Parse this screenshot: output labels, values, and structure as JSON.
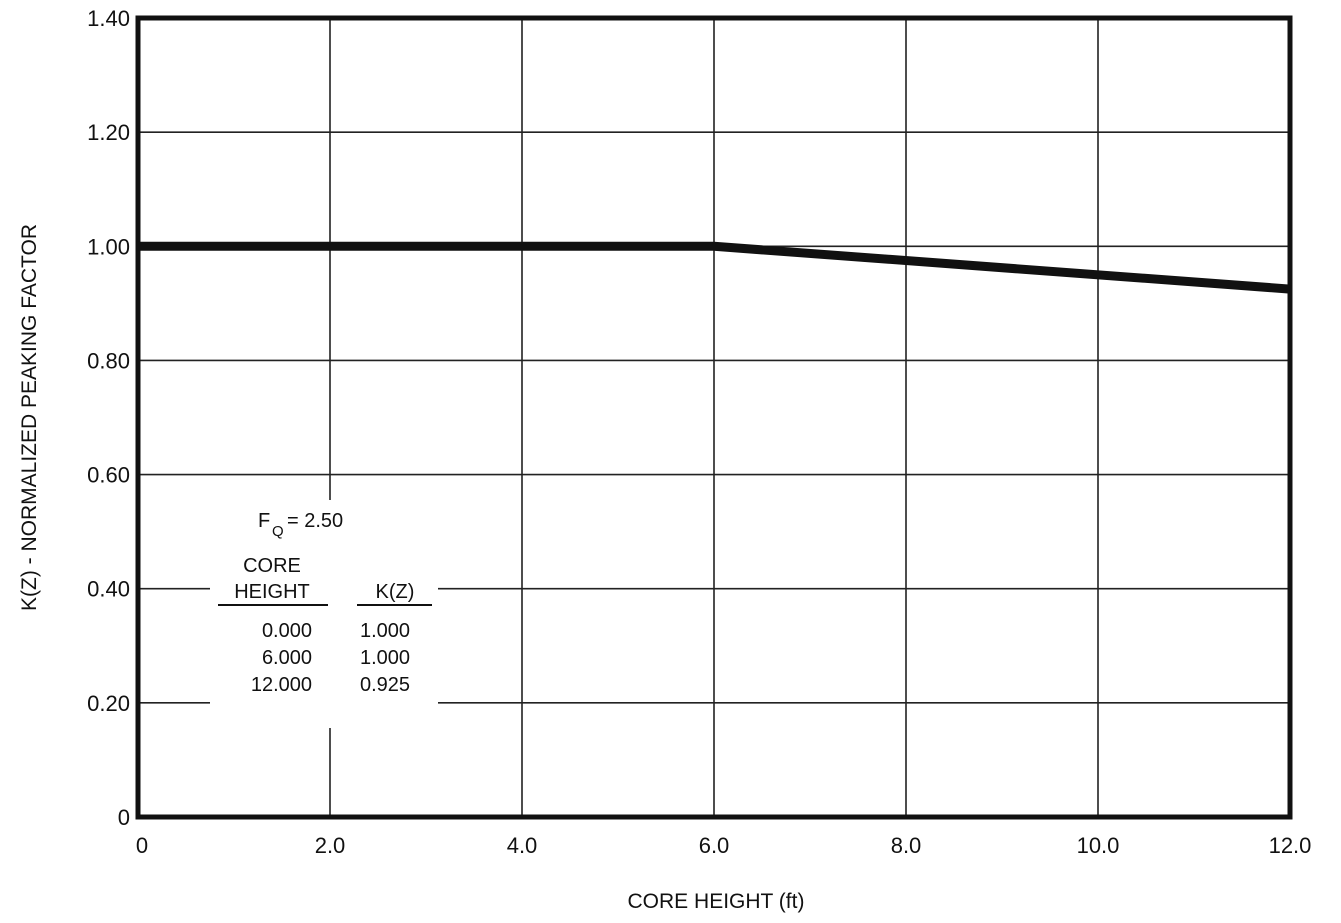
{
  "chart_data": {
    "type": "line",
    "xlabel": "CORE HEIGHT (ft)",
    "ylabel": "K(Z) - NORMALIZED PEAKING FACTOR",
    "xlim": [
      0,
      12
    ],
    "ylim": [
      0,
      1.4
    ],
    "x_ticks": [
      0,
      2,
      4,
      6,
      8,
      10,
      12
    ],
    "x_tick_labels": [
      "0",
      "2.0",
      "4.0",
      "6.0",
      "8.0",
      "10.0",
      "12.0"
    ],
    "y_ticks": [
      0,
      0.2,
      0.4,
      0.6,
      0.8,
      1.0,
      1.2,
      1.4
    ],
    "y_tick_labels": [
      "0",
      "0.20",
      "0.40",
      "0.60",
      "0.80",
      "1.00",
      "1.20",
      "1.40"
    ],
    "grid": true,
    "series": [
      {
        "x": [
          0,
          6,
          12
        ],
        "y": [
          1.0,
          1.0,
          0.925
        ],
        "color": "#111111"
      }
    ],
    "annotation": {
      "fq_label": "F",
      "fq_sub": "Q",
      "fq_value": "= 2.50",
      "col1_header_line1": "CORE",
      "col1_header_line2": "HEIGHT",
      "col2_header": "K(Z)",
      "rows": [
        [
          "0.000",
          "1.000"
        ],
        [
          "6.000",
          "1.000"
        ],
        [
          "12.000",
          "0.925"
        ]
      ]
    }
  }
}
